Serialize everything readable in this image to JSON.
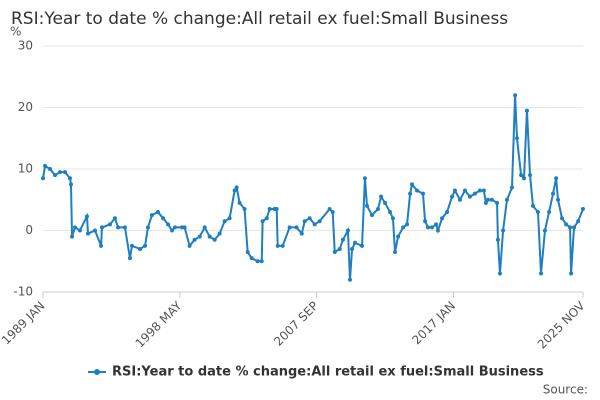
{
  "chart_data": {
    "type": "line",
    "title": "RSI:Year to date % change:All retail ex fuel:Small Business",
    "y_label": "%",
    "source": "Source:",
    "xlim": [
      1989,
      2025.833
    ],
    "xticks": [
      {
        "value": 1989,
        "label": "1989 JAN"
      },
      {
        "value": 1998.333,
        "label": "1998 MAY"
      },
      {
        "value": 2007.667,
        "label": "2007 SEP"
      },
      {
        "value": 2017,
        "label": "2017 JAN"
      },
      {
        "value": 2025.833,
        "label": "2025 NOV"
      }
    ],
    "ylim": [
      -10,
      30
    ],
    "yticks": [
      -10,
      0,
      10,
      20,
      30
    ],
    "grid": true,
    "legend": "bottom",
    "x": [
      1989.0,
      1989.14,
      1989.48,
      1989.82,
      1990.16,
      1990.5,
      1990.84,
      1990.91,
      1990.98,
      1991.18,
      1991.52,
      1992.0,
      1992.07,
      1992.55,
      1992.96,
      1993.02,
      1993.57,
      1993.91,
      1994.12,
      1994.59,
      1994.93,
      1995.07,
      1995.62,
      1995.96,
      1996.16,
      1996.43,
      1996.84,
      1997.19,
      1997.53,
      1997.8,
      1998.0,
      1998.48,
      1998.66,
      1999.0,
      1999.34,
      1999.69,
      2000.03,
      2000.37,
      2000.71,
      2001.05,
      2001.39,
      2001.73,
      2002.07,
      2002.21,
      2002.41,
      2002.75,
      2002.96,
      2003.23,
      2003.64,
      2003.92,
      2003.98,
      2004.26,
      2004.46,
      2004.8,
      2004.94,
      2005.01,
      2005.35,
      2005.82,
      2006.3,
      2006.65,
      2006.85,
      2007.19,
      2007.53,
      2007.87,
      2008.55,
      2008.76,
      2008.9,
      2009.24,
      2009.46,
      2009.8,
      2009.94,
      2010.08,
      2010.28,
      2010.76,
      2010.96,
      2011.1,
      2011.44,
      2011.85,
      2012.06,
      2012.33,
      2012.67,
      2012.87,
      2013.01,
      2013.22,
      2013.56,
      2013.83,
      2014.04,
      2014.17,
      2014.51,
      2014.92,
      2015.06,
      2015.26,
      2015.53,
      2015.81,
      2015.94,
      2016.22,
      2016.56,
      2016.9,
      2017.1,
      2017.44,
      2017.78,
      2018.12,
      2018.46,
      2018.8,
      2019.07,
      2019.21,
      2019.35,
      2019.62,
      2019.97,
      2020.03,
      2020.17,
      2020.38,
      2020.65,
      2020.99,
      2021.2,
      2021.33,
      2021.61,
      2021.81,
      2022.01,
      2022.22,
      2022.42,
      2022.76,
      2022.97,
      2023.24,
      2023.52,
      2023.79,
      2024.0,
      2024.13,
      2024.4,
      2024.68,
      2024.95,
      2025.02,
      2025.22,
      2025.5,
      2025.83
    ],
    "series": [
      {
        "name": "RSI:Year to date % change:All retail ex fuel:Small Business",
        "color": "#1f7fc0",
        "values": [
          8.5,
          10.5,
          10,
          9,
          9.5,
          9.5,
          8.5,
          7.5,
          -1,
          0.5,
          0,
          2.3,
          -0.5,
          0,
          -2.5,
          0.5,
          1,
          2,
          0.5,
          0.5,
          -4.5,
          -2.5,
          -3,
          -2.5,
          0.5,
          2.5,
          3,
          2,
          1,
          0,
          0.5,
          0.5,
          0.5,
          -2.5,
          -1.5,
          -1,
          0.5,
          -1,
          -1.5,
          -0.5,
          1.5,
          2,
          6.5,
          7,
          4.5,
          3.5,
          -3.5,
          -4.5,
          -5,
          -5,
          1.5,
          2,
          3.5,
          3.5,
          3.5,
          -2.5,
          -2.5,
          0.5,
          0.5,
          -0.5,
          1.5,
          2,
          1,
          1.5,
          3.5,
          3,
          -3.5,
          -3,
          -1.5,
          0,
          -8,
          -3,
          -2,
          -2.5,
          8.5,
          4,
          2.5,
          3.5,
          5.5,
          4.5,
          3,
          2,
          -3.5,
          -1,
          0.5,
          1,
          6,
          7.5,
          6.5,
          6,
          1.5,
          0.5,
          0.5,
          1,
          0,
          2,
          3,
          5.5,
          6.5,
          5,
          6.5,
          5.5,
          6,
          6.5,
          6.5,
          4.5,
          5,
          5,
          4.5,
          -1.5,
          -7,
          0,
          5,
          7,
          22,
          15,
          9,
          8.5,
          19.5,
          9,
          4,
          3,
          -7,
          0,
          3,
          6,
          8.5,
          5,
          2,
          1,
          0.5,
          -7,
          0.5,
          1.5,
          3.5
        ]
      }
    ]
  }
}
